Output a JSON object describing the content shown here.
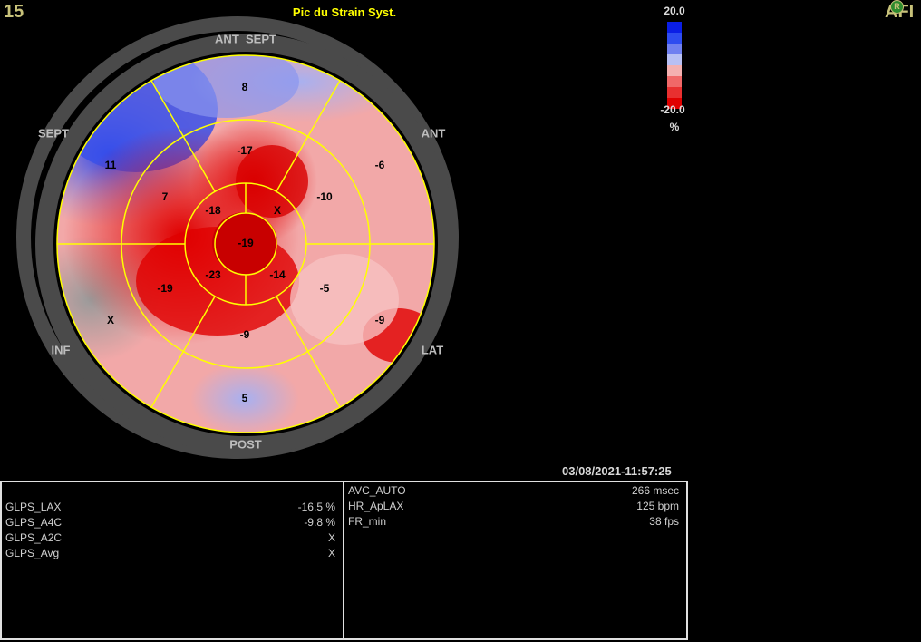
{
  "header": {
    "frame_number": "15",
    "title": "Pic du Strain Syst.",
    "logo_text": "AFI",
    "logo_badge": "R"
  },
  "color_scale": {
    "max_label": "20.0",
    "min_label": "-20.0",
    "unit": "%",
    "colors": [
      "#0a1ee6",
      "#2e4cf0",
      "#7080f0",
      "#b8c0f4",
      "#f4b0b0",
      "#f06868",
      "#e83030",
      "#e00000"
    ]
  },
  "bullseye": {
    "wall_labels": {
      "top": "ANT_SEPT",
      "upper_left": "SEPT",
      "upper_right": "ANT",
      "lower_left": "INF",
      "lower_right": "LAT",
      "bottom": "POST"
    },
    "basal_segments": [
      "8",
      "-6",
      "-9",
      "5",
      "X",
      "11"
    ],
    "mid_segments": [
      "-17",
      "-10",
      "-5",
      "-9",
      "-19",
      "7"
    ],
    "apical_segments": [
      "X",
      "-14",
      "-23",
      "-18"
    ],
    "apex": "-19"
  },
  "timestamp": "03/08/2021-11:57:25",
  "left_panel": {
    "rows": [
      {
        "label": "GLPS_LAX",
        "value": "-16.5 %"
      },
      {
        "label": "GLPS_A4C",
        "value": "-9.8 %"
      },
      {
        "label": "GLPS_A2C",
        "value": "X"
      },
      {
        "label": "GLPS_Avg",
        "value": "X"
      }
    ]
  },
  "right_panel": {
    "rows": [
      {
        "label": "AVC_AUTO",
        "value": "266 msec"
      },
      {
        "label": "HR_ApLAX",
        "value": "125 bpm"
      },
      {
        "label": "FR_min",
        "value": "38 fps"
      }
    ]
  }
}
